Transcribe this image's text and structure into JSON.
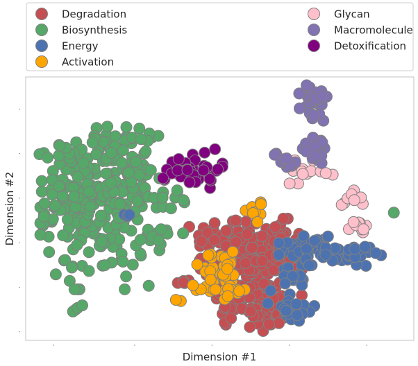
{
  "chart_data": {
    "type": "scatter",
    "title": "",
    "xlabel": "Dimension #1",
    "ylabel": "Dimension #2",
    "xlim": [
      0,
      100
    ],
    "ylim": [
      0,
      100
    ],
    "grid": false,
    "legend_position": "top",
    "marker_edge_color": "#808080",
    "series": [
      {
        "name": "Degradation",
        "color": "#c44e52",
        "clusters": [
          {
            "cx": 58,
            "cy": 25,
            "sx": 6,
            "sy": 11,
            "n": 150
          },
          {
            "cx": 52,
            "cy": 38,
            "sx": 4.5,
            "sy": 5,
            "n": 45
          },
          {
            "cx": 64,
            "cy": 33,
            "sx": 4,
            "sy": 6,
            "n": 45
          },
          {
            "cx": 59,
            "cy": 9,
            "sx": 3.5,
            "sy": 3,
            "n": 25
          },
          {
            "cx": 41,
            "cy": 22,
            "sx": 1.5,
            "sy": 1.2,
            "n": 5
          }
        ]
      },
      {
        "name": "Biosynthesis",
        "color": "#55a868",
        "clusters": [
          {
            "cx": 19,
            "cy": 50,
            "sx": 7,
            "sy": 14,
            "n": 190
          },
          {
            "cx": 12,
            "cy": 56,
            "sx": 5,
            "sy": 6,
            "n": 45
          },
          {
            "cx": 28,
            "cy": 60,
            "sx": 4,
            "sy": 5,
            "n": 35
          },
          {
            "cx": 23,
            "cy": 74,
            "sx": 4,
            "sy": 3.5,
            "n": 30
          },
          {
            "cx": 8,
            "cy": 71,
            "sx": 3,
            "sy": 1.5,
            "n": 12
          },
          {
            "cx": 37,
            "cy": 54,
            "sx": 2.5,
            "sy": 2,
            "n": 10
          },
          {
            "cx": 35,
            "cy": 41,
            "sx": 2.5,
            "sy": 3,
            "n": 10
          },
          {
            "cx": 13,
            "cy": 12,
            "sx": 1,
            "sy": 0.8,
            "n": 4
          },
          {
            "cx": 95,
            "cy": 48,
            "sx": 0.3,
            "sy": 0.3,
            "n": 1
          }
        ]
      },
      {
        "name": "Energy",
        "color": "#4c72b0",
        "clusters": [
          {
            "cx": 73,
            "cy": 35,
            "sx": 3.5,
            "sy": 3,
            "n": 40
          },
          {
            "cx": 84,
            "cy": 32,
            "sx": 3.5,
            "sy": 2,
            "n": 25
          },
          {
            "cx": 68,
            "cy": 22,
            "sx": 2.5,
            "sy": 4,
            "n": 20
          },
          {
            "cx": 69,
            "cy": 11,
            "sx": 3,
            "sy": 2.5,
            "n": 20
          },
          {
            "cx": 26,
            "cy": 47.5,
            "sx": 0.6,
            "sy": 0.4,
            "n": 3
          }
        ]
      },
      {
        "name": "Activation",
        "color": "#ffa500",
        "clusters": [
          {
            "cx": 50,
            "cy": 27,
            "sx": 4.5,
            "sy": 3,
            "n": 25
          },
          {
            "cx": 47,
            "cy": 20,
            "sx": 4,
            "sy": 2.5,
            "n": 15
          },
          {
            "cx": 54,
            "cy": 19,
            "sx": 2,
            "sy": 1.5,
            "n": 7
          },
          {
            "cx": 60,
            "cy": 50,
            "sx": 1.5,
            "sy": 1.5,
            "n": 7
          },
          {
            "cx": 59,
            "cy": 45,
            "sx": 0.5,
            "sy": 0.5,
            "n": 1
          }
        ]
      },
      {
        "name": "Glycan",
        "color": "#ffc0cb",
        "clusters": [
          {
            "cx": 72,
            "cy": 64,
            "sx": 2.5,
            "sy": 2,
            "n": 14
          },
          {
            "cx": 83,
            "cy": 53,
            "sx": 1.8,
            "sy": 1.8,
            "n": 8
          },
          {
            "cx": 86,
            "cy": 42,
            "sx": 1.8,
            "sy": 2,
            "n": 10
          },
          {
            "cx": 77,
            "cy": 63,
            "sx": 1,
            "sy": 1,
            "n": 2
          }
        ]
      },
      {
        "name": "Macromolecule",
        "color": "#8172b2",
        "clusters": [
          {
            "cx": 74.5,
            "cy": 90,
            "sx": 1.8,
            "sy": 4,
            "n": 25
          },
          {
            "cx": 74,
            "cy": 74,
            "sx": 2.5,
            "sy": 3,
            "n": 25
          },
          {
            "cx": 67,
            "cy": 68,
            "sx": 1.5,
            "sy": 2.5,
            "n": 10
          }
        ]
      },
      {
        "name": "Detoxification",
        "color": "#800080",
        "clusters": [
          {
            "cx": 43,
            "cy": 65,
            "sx": 3.5,
            "sy": 3.5,
            "n": 40
          }
        ]
      }
    ]
  }
}
